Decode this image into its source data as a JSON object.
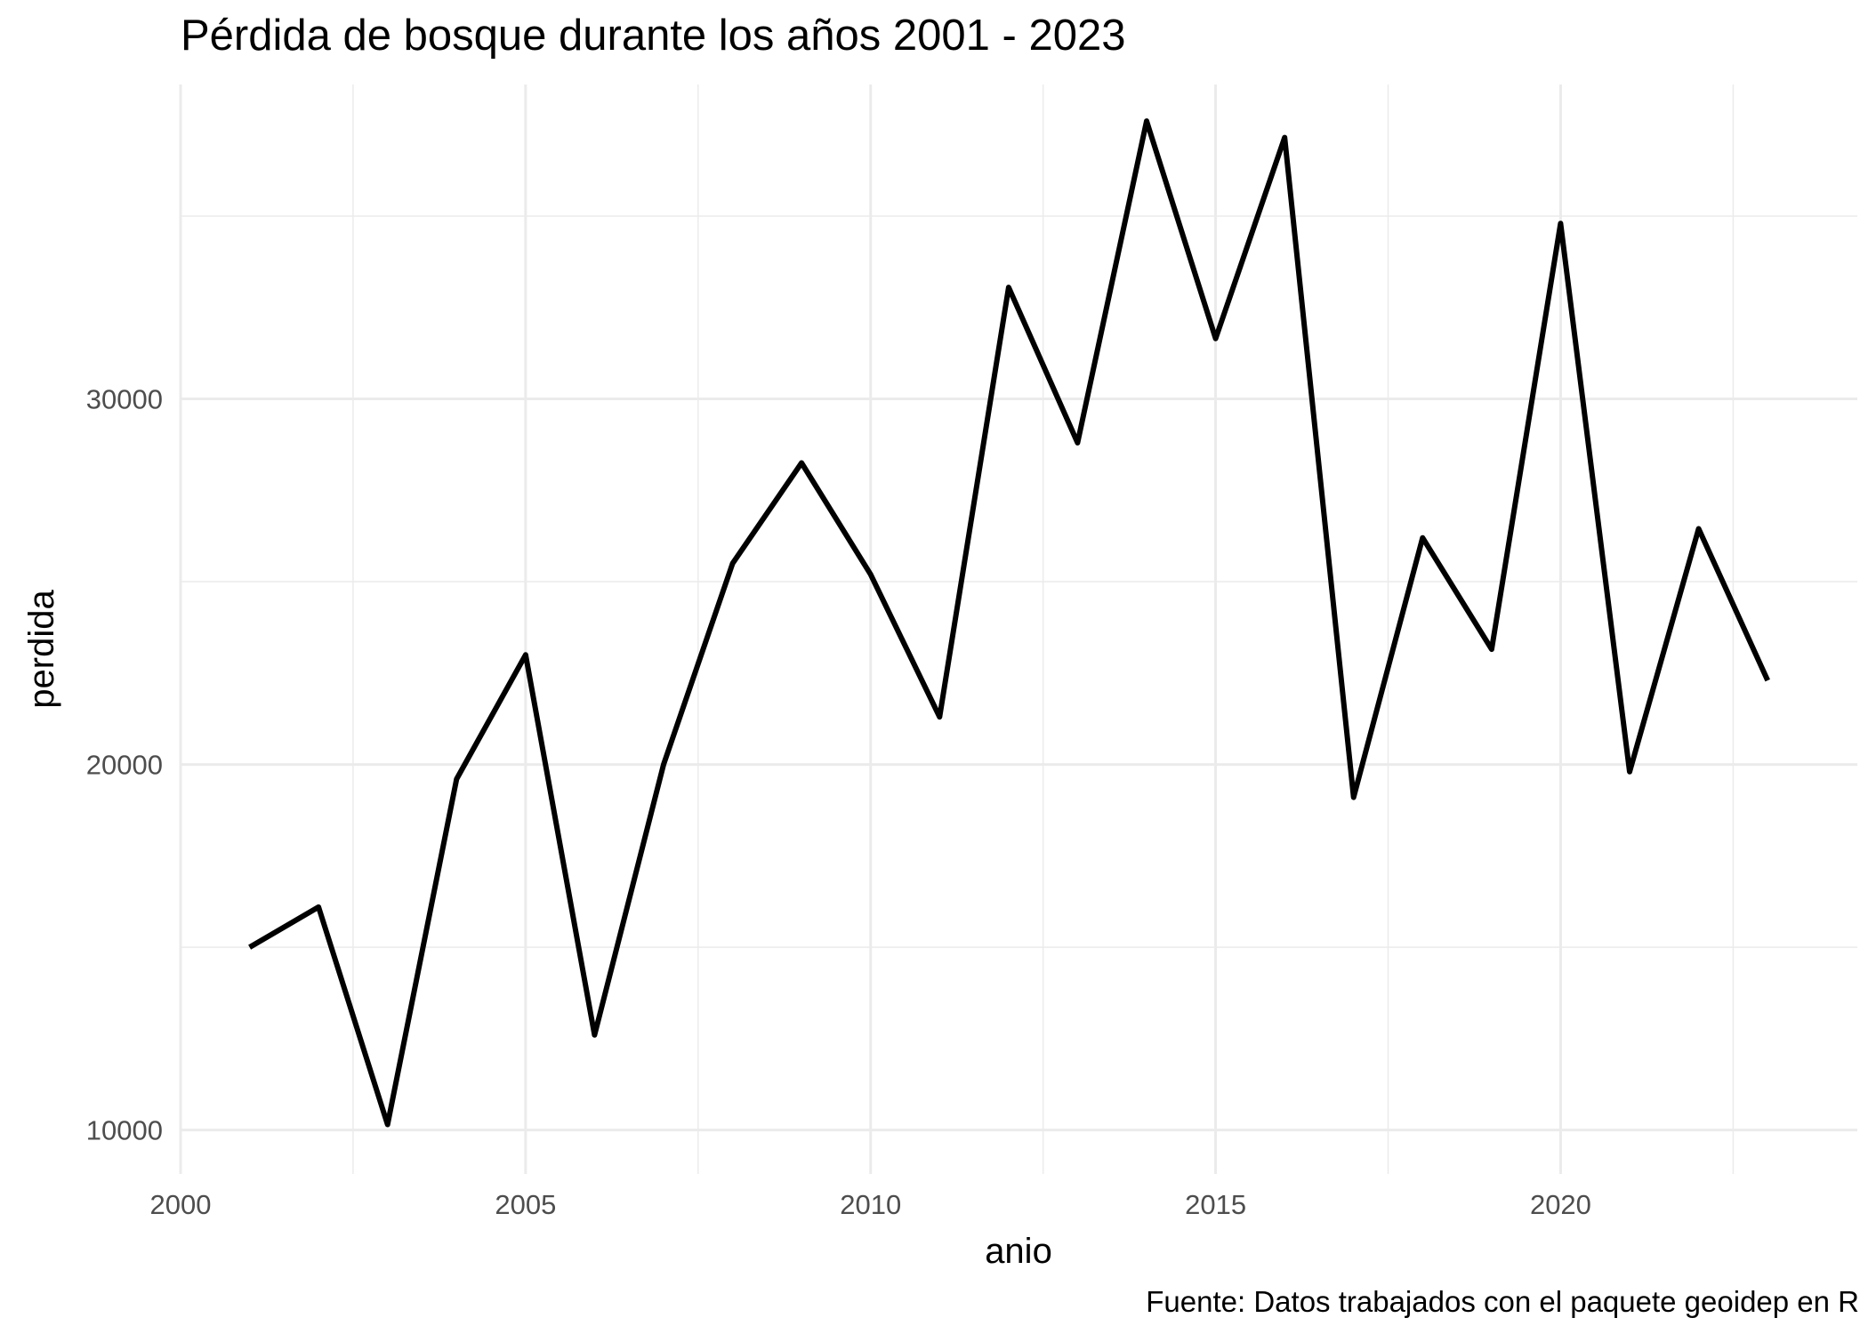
{
  "chart_data": {
    "type": "line",
    "title": "Pérdida de bosque durante los años 2001 - 2023",
    "xlabel": "anio",
    "ylabel": "perdida",
    "caption": "Fuente: Datos trabajados con el paquete geoidep en R",
    "xlim": [
      2000,
      2024.3
    ],
    "ylim": [
      8800,
      38600
    ],
    "x_ticks": [
      2000,
      2005,
      2010,
      2015,
      2020
    ],
    "y_ticks": [
      10000,
      20000,
      30000
    ],
    "grid": true,
    "series": [
      {
        "color": "#000000",
        "x": [
          2001,
          2002,
          2003,
          2004,
          2005,
          2006,
          2007,
          2008,
          2009,
          2010,
          2011,
          2012,
          2013,
          2014,
          2015,
          2016,
          2017,
          2018,
          2019,
          2020,
          2021,
          2022,
          2023
        ],
        "values": [
          15000,
          16100,
          10150,
          19600,
          23000,
          12600,
          20000,
          25500,
          28250,
          25200,
          21300,
          33050,
          28800,
          37600,
          31650,
          37150,
          19100,
          26200,
          23150,
          34800,
          19800,
          26450,
          22300
        ]
      }
    ]
  }
}
